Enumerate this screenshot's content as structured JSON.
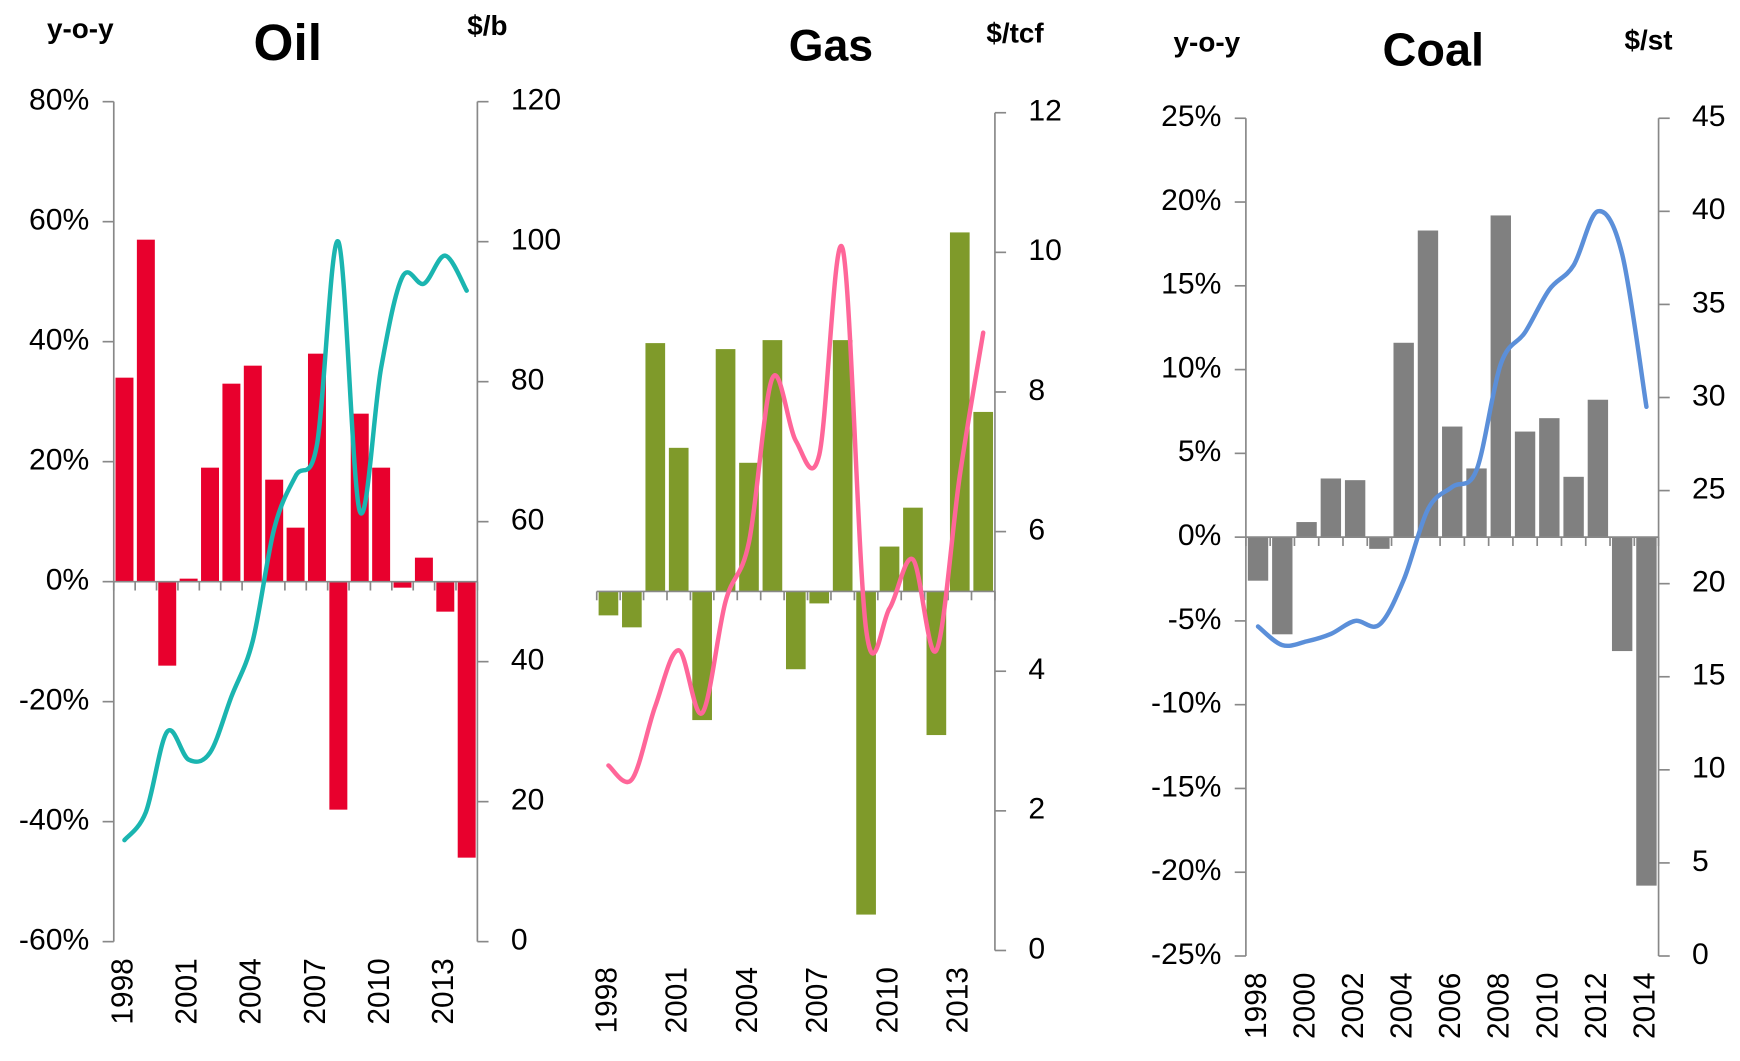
{
  "chart_data": [
    {
      "type": "bar",
      "title": "Oil",
      "ylabel": "y-o-y",
      "y2label": "$/b",
      "categories": [
        1998,
        null,
        null,
        2001,
        null,
        null,
        2004,
        null,
        null,
        2007,
        null,
        null,
        2010,
        null,
        null,
        2013,
        null
      ],
      "series": [
        {
          "type": "bar",
          "color": "#e8002d",
          "values": [
            34,
            57,
            -14,
            0.5,
            19,
            33,
            36,
            17,
            9,
            38,
            -38,
            28,
            19,
            -1,
            4,
            -5,
            -46
          ]
        },
        {
          "type": "line",
          "axis": "y2",
          "color": "#1ab5b0",
          "values": [
            14.5,
            18.5,
            30,
            26,
            27,
            35,
            43,
            59,
            66.5,
            71,
            100,
            61.5,
            82,
            95,
            94,
            98,
            93
          ]
        }
      ],
      "ylim": [
        -60,
        80
      ],
      "yticks": [
        {
          "value": -60,
          "label": "-60%"
        },
        {
          "value": -40,
          "label": "-40%"
        },
        {
          "value": -20,
          "label": "-20%"
        },
        {
          "value": 0,
          "label": "0%"
        },
        {
          "value": 20,
          "label": "20%"
        },
        {
          "value": 40,
          "label": "40%"
        },
        {
          "value": 60,
          "label": "60%"
        },
        {
          "value": 80,
          "label": "80%"
        }
      ],
      "y2lim": [
        0,
        120
      ],
      "y2ticks": [
        0,
        20,
        40,
        60,
        80,
        100,
        120
      ]
    },
    {
      "type": "bar",
      "title": "Gas",
      "y2label": "$/tcf",
      "categories": [
        1998,
        null,
        null,
        2001,
        null,
        null,
        2004,
        null,
        null,
        2007,
        null,
        null,
        2010,
        null,
        null,
        2013,
        null
      ],
      "series": [
        {
          "type": "bar",
          "color": "#7f9a2a",
          "values": [
            -4,
            -6,
            41.5,
            24,
            -21.5,
            40.5,
            21.5,
            42,
            -13,
            -2,
            42,
            -54,
            7.5,
            14,
            -24,
            60,
            30
          ]
        },
        {
          "type": "line",
          "axis": "y2",
          "color": "#ff6699",
          "values": [
            2.65,
            2.45,
            3.5,
            4.3,
            3.4,
            5.0,
            5.85,
            8.2,
            7.3,
            7.1,
            10.05,
            4.6,
            4.9,
            5.6,
            4.3,
            6.8,
            8.85
          ]
        }
      ],
      "ylim": [
        -60,
        80
      ],
      "y2lim": [
        0,
        12
      ],
      "y2ticks": [
        0,
        2,
        4,
        6,
        8,
        10,
        12
      ]
    },
    {
      "type": "bar",
      "title": "Coal",
      "ylabel": "y-o-y",
      "y2label": "$/st",
      "categories": [
        1998,
        null,
        2000,
        null,
        2002,
        null,
        2004,
        null,
        2006,
        null,
        2008,
        null,
        2010,
        null,
        2012,
        null,
        2014
      ],
      "series": [
        {
          "type": "bar",
          "color": "#808080",
          "values": [
            -2.6,
            -5.8,
            0.9,
            3.5,
            3.4,
            -0.7,
            11.6,
            18.3,
            6.6,
            4.1,
            19.2,
            6.3,
            7.1,
            3.6,
            8.2,
            -6.8,
            -20.8
          ]
        },
        {
          "type": "line",
          "axis": "y2",
          "color": "#5b8fd9",
          "values": [
            17.7,
            16.7,
            16.9,
            17.3,
            18.0,
            17.8,
            20.2,
            24.0,
            25.2,
            26.1,
            31.8,
            33.5,
            35.8,
            37.1,
            40.0,
            37.7,
            29.5
          ]
        }
      ],
      "ylim": [
        -25,
        25
      ],
      "yticks": [
        {
          "value": -25,
          "label": "-25%"
        },
        {
          "value": -20,
          "label": "-20%"
        },
        {
          "value": -15,
          "label": "-15%"
        },
        {
          "value": -10,
          "label": "-10%"
        },
        {
          "value": -5,
          "label": "-5%"
        },
        {
          "value": 0,
          "label": "0%"
        },
        {
          "value": 5,
          "label": "5%"
        },
        {
          "value": 10,
          "label": "10%"
        },
        {
          "value": 15,
          "label": "15%"
        },
        {
          "value": 20,
          "label": "20%"
        },
        {
          "value": 25,
          "label": "25%"
        }
      ],
      "y2lim": [
        0,
        45
      ],
      "y2ticks": [
        0,
        5,
        10,
        15,
        20,
        25,
        30,
        35,
        40,
        45
      ]
    }
  ]
}
